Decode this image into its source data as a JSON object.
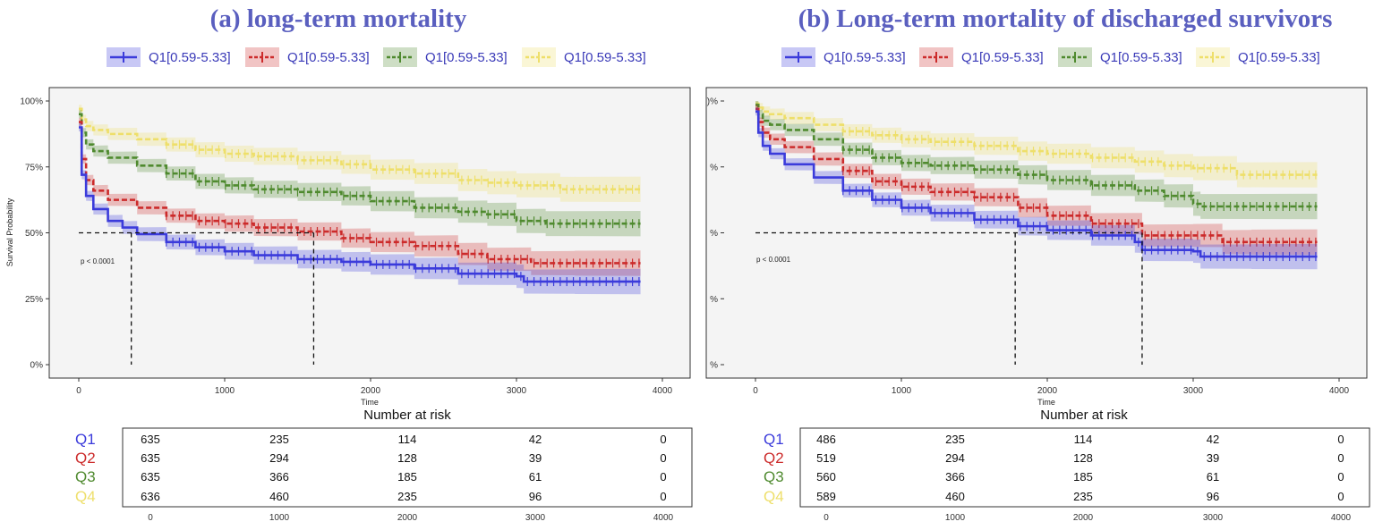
{
  "figure": {
    "colors": {
      "Q1": "#3b3bdb",
      "Q2": "#cc2b2b",
      "Q3": "#4f8a2f",
      "Q4": "#eedf6a",
      "title": "#5a5fbf",
      "legend_text": "#3a3ab8",
      "panel_bg": "#f4f4f4"
    }
  },
  "chart_data": [
    {
      "type": "line",
      "title": "(a)  long-term mortality",
      "xlabel": "Time",
      "ylabel": "Survival Probability",
      "xlim": [
        0,
        4000
      ],
      "ylim": [
        0,
        1
      ],
      "x_ticks": [
        "0",
        "1000",
        "2000",
        "3000",
        "4000"
      ],
      "y_ticks": [
        "0%",
        "25%",
        "50%",
        "75%",
        "100%"
      ],
      "legend": [
        "Q1[0.59-5.33]",
        "Q1[0.59-5.33]",
        "Q1[0.59-5.33]",
        "Q1[0.59-5.33]"
      ],
      "legend_position": "top",
      "pvalue": "p < 0.0001",
      "median_refs": [
        360,
        1610
      ],
      "series": [
        {
          "group": "Q1",
          "style": "solid",
          "x": [
            0,
            20,
            50,
            100,
            200,
            300,
            400,
            600,
            800,
            1000,
            1200,
            1500,
            1800,
            2000,
            2300,
            2600,
            3000,
            3050,
            3400,
            3850
          ],
          "y": [
            0.9,
            0.72,
            0.64,
            0.59,
            0.545,
            0.52,
            0.495,
            0.465,
            0.445,
            0.43,
            0.415,
            0.4,
            0.39,
            0.38,
            0.365,
            0.345,
            0.335,
            0.315,
            0.315,
            0.315
          ]
        },
        {
          "group": "Q2",
          "style": "dashed",
          "x": [
            0,
            20,
            50,
            100,
            200,
            400,
            600,
            800,
            1000,
            1200,
            1500,
            1800,
            2000,
            2300,
            2600,
            2800,
            3100,
            3400,
            3850
          ],
          "y": [
            0.92,
            0.78,
            0.7,
            0.66,
            0.625,
            0.595,
            0.565,
            0.545,
            0.535,
            0.52,
            0.505,
            0.48,
            0.465,
            0.45,
            0.42,
            0.4,
            0.385,
            0.385,
            0.385
          ]
        },
        {
          "group": "Q3",
          "style": "dashed",
          "x": [
            0,
            20,
            50,
            100,
            200,
            400,
            600,
            800,
            1000,
            1200,
            1500,
            1800,
            2000,
            2300,
            2600,
            2800,
            3000,
            3200,
            3850
          ],
          "y": [
            0.95,
            0.88,
            0.835,
            0.81,
            0.785,
            0.755,
            0.725,
            0.695,
            0.68,
            0.665,
            0.655,
            0.64,
            0.62,
            0.595,
            0.58,
            0.57,
            0.545,
            0.535,
            0.535
          ]
        },
        {
          "group": "Q4",
          "style": "dashed",
          "x": [
            0,
            20,
            50,
            100,
            200,
            400,
            600,
            800,
            1000,
            1200,
            1500,
            1800,
            2000,
            2300,
            2600,
            2800,
            3000,
            3300,
            3850
          ],
          "y": [
            0.97,
            0.93,
            0.905,
            0.89,
            0.875,
            0.855,
            0.835,
            0.815,
            0.8,
            0.79,
            0.775,
            0.76,
            0.74,
            0.725,
            0.7,
            0.69,
            0.68,
            0.665,
            0.665
          ]
        }
      ],
      "risk_table": {
        "title": "Number at risk",
        "times": [
          "0",
          "1000",
          "2000",
          "3000",
          "4000"
        ],
        "rows": [
          {
            "group": "Q1",
            "values": [
              "635",
              "235",
              "114",
              "42",
              "0"
            ]
          },
          {
            "group": "Q2",
            "values": [
              "635",
              "294",
              "128",
              "39",
              "0"
            ]
          },
          {
            "group": "Q3",
            "values": [
              "635",
              "366",
              "185",
              "61",
              "0"
            ]
          },
          {
            "group": "Q4",
            "values": [
              "636",
              "460",
              "235",
              "96",
              "0"
            ]
          }
        ]
      }
    },
    {
      "type": "line",
      "title": "(b)  Long-term mortality of discharged survivors",
      "xlabel": "Time",
      "ylabel": "",
      "xlim": [
        0,
        4000
      ],
      "ylim": [
        0,
        1
      ],
      "x_ticks": [
        "0",
        "1000",
        "2000",
        "3000",
        "4000"
      ],
      "y_ticks": [
        "%",
        "%",
        "%",
        "%",
        ")%"
      ],
      "legend": [
        "Q1[0.59-5.33]",
        "Q1[0.59-5.33]",
        "Q1[0.59-5.33]",
        "Q1[0.59-5.33]"
      ],
      "legend_position": "top",
      "pvalue": "p < 0.0001",
      "median_refs": [
        1780,
        2650
      ],
      "series": [
        {
          "group": "Q1",
          "style": "solid",
          "x": [
            0,
            20,
            50,
            100,
            200,
            400,
            600,
            800,
            1000,
            1200,
            1500,
            1800,
            2000,
            2300,
            2600,
            2650,
            3000,
            3050,
            3400,
            3850
          ],
          "y": [
            0.96,
            0.88,
            0.83,
            0.8,
            0.76,
            0.71,
            0.66,
            0.625,
            0.595,
            0.575,
            0.55,
            0.525,
            0.51,
            0.49,
            0.465,
            0.435,
            0.43,
            0.41,
            0.41,
            0.41
          ]
        },
        {
          "group": "Q2",
          "style": "dashed",
          "x": [
            0,
            20,
            50,
            100,
            200,
            400,
            600,
            800,
            1000,
            1200,
            1500,
            1800,
            2000,
            2300,
            2650,
            3000,
            3200,
            3400,
            3850
          ],
          "y": [
            0.97,
            0.92,
            0.88,
            0.855,
            0.825,
            0.78,
            0.735,
            0.695,
            0.675,
            0.655,
            0.635,
            0.595,
            0.565,
            0.535,
            0.49,
            0.49,
            0.465,
            0.465,
            0.465
          ]
        },
        {
          "group": "Q3",
          "style": "dashed",
          "x": [
            0,
            20,
            50,
            100,
            200,
            400,
            600,
            800,
            1000,
            1200,
            1500,
            1800,
            2000,
            2300,
            2600,
            2800,
            3000,
            3050,
            3850
          ],
          "y": [
            0.985,
            0.95,
            0.925,
            0.91,
            0.89,
            0.855,
            0.815,
            0.785,
            0.765,
            0.755,
            0.74,
            0.72,
            0.7,
            0.68,
            0.66,
            0.64,
            0.61,
            0.6,
            0.6
          ]
        },
        {
          "group": "Q4",
          "style": "dashed",
          "x": [
            0,
            20,
            50,
            100,
            200,
            400,
            600,
            800,
            1000,
            1200,
            1500,
            1800,
            2000,
            2300,
            2600,
            2800,
            3000,
            3300,
            3850
          ],
          "y": [
            0.99,
            0.975,
            0.96,
            0.95,
            0.935,
            0.91,
            0.885,
            0.87,
            0.855,
            0.845,
            0.83,
            0.81,
            0.8,
            0.785,
            0.77,
            0.755,
            0.745,
            0.72,
            0.72
          ]
        }
      ],
      "risk_table": {
        "title": "Number at risk",
        "times": [
          "0",
          "1000",
          "2000",
          "3000",
          "4000"
        ],
        "rows": [
          {
            "group": "Q1",
            "values": [
              "486",
              "235",
              "114",
              "42",
              "0"
            ]
          },
          {
            "group": "Q2",
            "values": [
              "519",
              "294",
              "128",
              "39",
              "0"
            ]
          },
          {
            "group": "Q3",
            "values": [
              "560",
              "366",
              "185",
              "61",
              "0"
            ]
          },
          {
            "group": "Q4",
            "values": [
              "589",
              "460",
              "235",
              "96",
              "0"
            ]
          }
        ]
      }
    }
  ]
}
